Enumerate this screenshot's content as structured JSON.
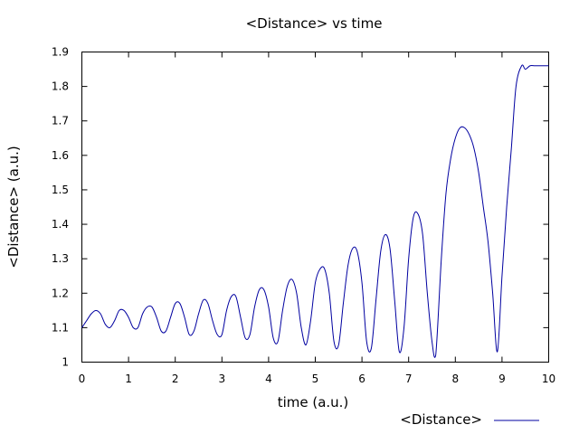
{
  "chart_data": {
    "type": "line",
    "title": "<Distance> vs time",
    "xlabel": "time (a.u.)",
    "ylabel": "<Distance> (a.u.)",
    "xlim": [
      0,
      10
    ],
    "ylim": [
      1,
      1.9
    ],
    "x_ticks": [
      "0",
      "1",
      "2",
      "3",
      "4",
      "5",
      "6",
      "7",
      "8",
      "9",
      "10"
    ],
    "y_ticks": [
      "1",
      "1.1",
      "1.2",
      "1.3",
      "1.4",
      "1.5",
      "1.6",
      "1.7",
      "1.8",
      "1.9"
    ],
    "grid": false,
    "legend_position": "bottom-right",
    "series": [
      {
        "name": "<Distance>",
        "color": "#0000a0",
        "x": [
          0.0,
          0.1,
          0.2,
          0.3,
          0.4,
          0.5,
          0.6,
          0.7,
          0.8,
          0.9,
          1.0,
          1.1,
          1.2,
          1.3,
          1.4,
          1.5,
          1.6,
          1.7,
          1.8,
          1.9,
          2.0,
          2.1,
          2.2,
          2.3,
          2.4,
          2.5,
          2.6,
          2.7,
          2.8,
          2.9,
          3.0,
          3.1,
          3.2,
          3.3,
          3.4,
          3.5,
          3.6,
          3.7,
          3.8,
          3.9,
          4.0,
          4.1,
          4.2,
          4.3,
          4.4,
          4.5,
          4.6,
          4.7,
          4.8,
          4.9,
          5.0,
          5.1,
          5.2,
          5.3,
          5.4,
          5.5,
          5.6,
          5.7,
          5.8,
          5.9,
          6.0,
          6.1,
          6.2,
          6.3,
          6.4,
          6.5,
          6.6,
          6.7,
          6.8,
          6.9,
          7.0,
          7.1,
          7.2,
          7.3,
          7.4,
          7.5,
          7.58,
          7.7,
          7.8,
          7.9,
          8.0,
          8.1,
          8.2,
          8.3,
          8.4,
          8.5,
          8.6,
          8.7,
          8.8,
          8.9,
          9.0,
          9.1,
          9.2,
          9.3,
          9.42,
          9.5,
          9.6,
          9.7,
          9.8,
          9.9,
          10.0
        ],
        "y": [
          1.1,
          1.12,
          1.14,
          1.15,
          1.14,
          1.11,
          1.1,
          1.12,
          1.15,
          1.15,
          1.13,
          1.1,
          1.1,
          1.14,
          1.16,
          1.16,
          1.13,
          1.09,
          1.09,
          1.13,
          1.17,
          1.17,
          1.13,
          1.08,
          1.09,
          1.14,
          1.18,
          1.17,
          1.12,
          1.08,
          1.08,
          1.15,
          1.19,
          1.19,
          1.13,
          1.07,
          1.08,
          1.16,
          1.21,
          1.21,
          1.16,
          1.07,
          1.06,
          1.15,
          1.22,
          1.24,
          1.2,
          1.1,
          1.05,
          1.12,
          1.23,
          1.27,
          1.27,
          1.2,
          1.06,
          1.05,
          1.17,
          1.28,
          1.33,
          1.32,
          1.23,
          1.06,
          1.04,
          1.18,
          1.32,
          1.37,
          1.33,
          1.18,
          1.03,
          1.1,
          1.3,
          1.42,
          1.43,
          1.37,
          1.2,
          1.06,
          1.02,
          1.3,
          1.49,
          1.59,
          1.65,
          1.68,
          1.68,
          1.66,
          1.62,
          1.55,
          1.45,
          1.35,
          1.2,
          1.03,
          1.25,
          1.45,
          1.62,
          1.8,
          1.86,
          1.85,
          1.86,
          1.86,
          1.86,
          1.86,
          1.86
        ]
      }
    ]
  }
}
